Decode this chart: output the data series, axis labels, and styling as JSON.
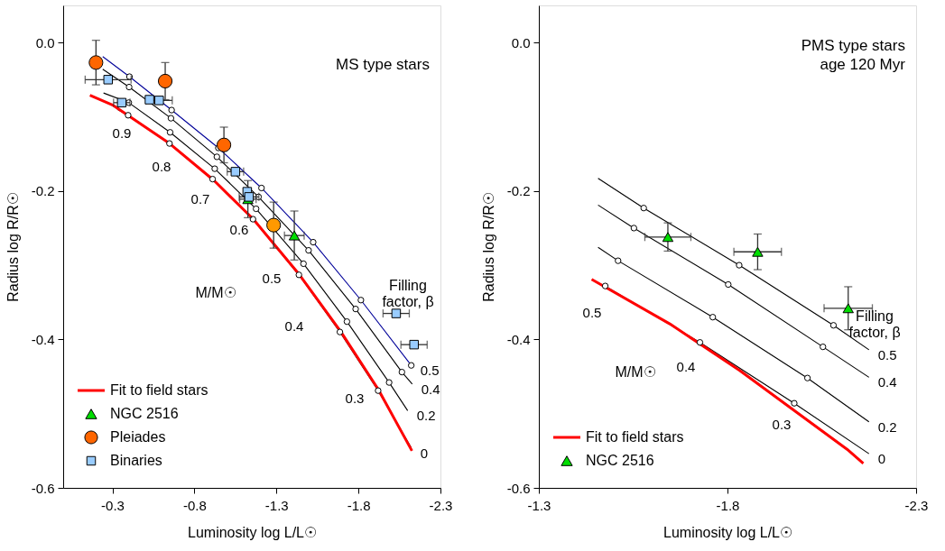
{
  "chart_data": [
    {
      "type": "line",
      "title": "MS type stars",
      "xlabel": "Luminosity log L/L☉",
      "ylabel": "Radius log R/R☉",
      "xlim": [
        0.0,
        -2.3
      ],
      "xticks": [
        -0.3,
        -0.8,
        -1.3,
        -1.8,
        -2.3
      ],
      "ylim": [
        -0.6,
        0.05
      ],
      "yticks": [
        {
          "value": 0,
          "label": "0.0"
        },
        -0.2,
        -0.4,
        -0.6
      ],
      "legend": "bottom left",
      "annotations": [
        "0.9",
        "0.8",
        "0.7",
        "0.6",
        "0.5",
        "0.4",
        "0.3",
        "M/M☉",
        "Filling factor, β",
        {
          "text": "0.5",
          "x": -2.122,
          "y": -0.435
        },
        {
          "text": "0.4",
          "x": -2.128,
          "y": -0.46
        },
        {
          "text": "0.2",
          "x": -2.1,
          "y": -0.496
        },
        {
          "text": "0",
          "x": -2.122,
          "y": -0.546
        }
      ],
      "series": [
        {
          "type": "line",
          "color": "#000099",
          "x": [
            -0.241,
            -0.404,
            -0.661,
            -0.946,
            -1.209,
            -1.524,
            -1.815,
            -2.122
          ],
          "values": [
            -0.019,
            -0.046,
            -0.091,
            -0.142,
            -0.196,
            -0.269,
            -0.347,
            -0.435
          ]
        },
        {
          "type": "line",
          "color": "#000000",
          "x": [
            -0.241,
            -0.402,
            -0.657,
            -0.937,
            -1.191,
            -1.496,
            -1.783,
            -2.065,
            -2.128
          ],
          "values": [
            -0.036,
            -0.06,
            -0.102,
            -0.154,
            -0.208,
            -0.28,
            -0.359,
            -0.444,
            -0.46
          ]
        },
        {
          "type": "line",
          "color": "#000000",
          "x": [
            -0.246,
            -0.4,
            -0.652,
            -0.924,
            -1.176,
            -1.465,
            -1.73,
            -1.987,
            -2.1
          ],
          "values": [
            -0.068,
            -0.081,
            -0.121,
            -0.17,
            -0.224,
            -0.298,
            -0.376,
            -0.458,
            -0.496
          ]
        },
        {
          "type": "line",
          "color": "#000000",
          "x": [
            -0.33,
            -0.396,
            -0.648,
            -0.911,
            -1.157,
            -1.437,
            -1.687,
            -1.92,
            -2.122
          ],
          "values": [
            -0.09,
            -0.098,
            -0.136,
            -0.184,
            -0.238,
            -0.313,
            -0.39,
            -0.469,
            -0.546
          ]
        },
        {
          "name": "Fit to field stars",
          "type": "line",
          "color": "#ff0000",
          "x": [
            -0.163,
            -0.3,
            -0.648,
            -0.92,
            -1.159,
            -1.441,
            -1.691,
            -1.92,
            -2.126
          ],
          "values": [
            -0.071,
            -0.084,
            -0.136,
            -0.186,
            -0.238,
            -0.313,
            -0.389,
            -0.467,
            -0.55
          ]
        },
        {
          "type": "scatter",
          "color": "#000000",
          "marker": "circle",
          "x": [
            -0.404,
            -0.661,
            -0.946,
            -1.209,
            -1.524,
            -1.815,
            -2.122,
            -0.402,
            -0.657,
            -0.937,
            -1.191,
            -1.496,
            -1.783,
            -2.065,
            -0.4,
            -0.652,
            -0.924,
            -1.176,
            -1.465,
            -1.73,
            -1.987,
            -0.396,
            -0.648,
            -0.911,
            -1.157,
            -1.437,
            -1.687,
            -1.92
          ],
          "values": [
            -0.046,
            -0.091,
            -0.142,
            -0.196,
            -0.269,
            -0.347,
            -0.435,
            -0.06,
            -0.102,
            -0.154,
            -0.208,
            -0.28,
            -0.359,
            -0.444,
            -0.081,
            -0.121,
            -0.17,
            -0.224,
            -0.298,
            -0.376,
            -0.458,
            -0.098,
            -0.136,
            -0.184,
            -0.238,
            -0.313,
            -0.39,
            -0.469
          ]
        },
        {
          "name": "NGC 2516",
          "type": "scatter",
          "color": "#00dd00",
          "marker": "triangle",
          "x": [
            -1.126,
            -1.409
          ],
          "values": [
            -0.211,
            -0.26
          ],
          "errors": [
            0.025,
            0.033
          ],
          "xerrors": [
            0.05,
            0.06
          ]
        },
        {
          "name": "Pleiades",
          "type": "scatter",
          "color": "#ff6600",
          "colors": [
            "#ff6600",
            "#ff6600",
            "#ff6600",
            "#ff9900"
          ],
          "marker": "circle",
          "x": [
            -0.2,
            -0.622,
            -0.98,
            -1.283
          ],
          "values": [
            -0.027,
            -0.052,
            -0.138,
            -0.246
          ],
          "errors": [
            0.03,
            0.025,
            0.024,
            0.031
          ]
        },
        {
          "name": "Binaries",
          "type": "scatter",
          "color": "#99ccff",
          "marker": "square",
          "x": [
            -0.274,
            -0.357,
            -0.526,
            -0.585,
            -1.05,
            -1.122,
            -1.133,
            -2.03,
            -2.139
          ],
          "values": [
            -0.05,
            -0.081,
            -0.077,
            -0.078,
            -0.174,
            -0.201,
            -0.208,
            -0.365,
            -0.407
          ],
          "xerrors": [
            0.14,
            0.05,
            null,
            0.08,
            0.05,
            null,
            0.06,
            0.08,
            0.08
          ]
        }
      ]
    },
    {
      "type": "line",
      "title": "PMS type stars",
      "subtitle": "age 120 Myr",
      "xlabel": "Luminosity log L/L☉",
      "ylabel": "Radius log R/R☉",
      "xlim": [
        -1.3,
        -2.3
      ],
      "xticks": [
        -1.3,
        -1.8,
        -2.3
      ],
      "ylim": [
        -0.6,
        0.05
      ],
      "yticks": [
        {
          "value": 0,
          "label": "0.0"
        },
        -0.2,
        -0.4,
        -0.6
      ],
      "legend": "bottom left",
      "annotations": [
        "0.5",
        "0.4",
        "0.3",
        "M/M☉",
        "Filling factor, β",
        {
          "text": "0.5",
          "x": -2.175,
          "y": -0.414
        },
        {
          "text": "0.4",
          "x": -2.175,
          "y": -0.451
        },
        {
          "text": "0.2",
          "x": -2.175,
          "y": -0.511
        },
        {
          "text": "0",
          "x": -2.175,
          "y": -0.554
        }
      ],
      "series": [
        {
          "type": "line",
          "color": "#000000",
          "x": [
            -1.457,
            -1.578,
            -1.831,
            -2.081,
            -2.175
          ],
          "values": [
            -0.183,
            -0.223,
            -0.3,
            -0.381,
            -0.414
          ]
        },
        {
          "type": "line",
          "color": "#000000",
          "x": [
            -1.457,
            -1.552,
            -1.802,
            -2.053,
            -2.175
          ],
          "values": [
            -0.219,
            -0.25,
            -0.326,
            -0.41,
            -0.451
          ]
        },
        {
          "type": "line",
          "color": "#000000",
          "x": [
            -1.457,
            -1.51,
            -1.761,
            -2.012,
            -2.175
          ],
          "values": [
            -0.276,
            -0.294,
            -0.37,
            -0.452,
            -0.511
          ]
        },
        {
          "type": "line",
          "color": "#000000",
          "x": [
            -1.476,
            -1.727,
            -1.977,
            -2.175
          ],
          "values": [
            -0.328,
            -0.404,
            -0.486,
            -0.554
          ]
        },
        {
          "name": "Fit to field stars",
          "type": "line",
          "color": "#ff0000",
          "x": [
            -1.44,
            -1.647,
            -1.833,
            -2.117,
            -2.16
          ],
          "values": [
            -0.319,
            -0.379,
            -0.442,
            -0.548,
            -0.567
          ]
        },
        {
          "type": "scatter",
          "color": "#000000",
          "marker": "circle",
          "x": [
            -1.578,
            -1.831,
            -2.081,
            -1.552,
            -1.802,
            -2.053,
            -1.51,
            -1.761,
            -2.012,
            -1.476,
            -1.727,
            -1.977
          ],
          "values": [
            -0.223,
            -0.3,
            -0.381,
            -0.25,
            -0.326,
            -0.41,
            -0.294,
            -0.37,
            -0.452,
            -0.328,
            -0.404,
            -0.486
          ]
        },
        {
          "name": "NGC 2516",
          "type": "scatter",
          "color": "#00dd00",
          "marker": "triangle",
          "x": [
            -1.642,
            -1.88,
            -2.12
          ],
          "values": [
            -0.262,
            -0.282,
            -0.358
          ],
          "errors": [
            0.019,
            0.024,
            0.029
          ],
          "xerrors": [
            0.061,
            0.063,
            0.064
          ]
        }
      ]
    }
  ]
}
